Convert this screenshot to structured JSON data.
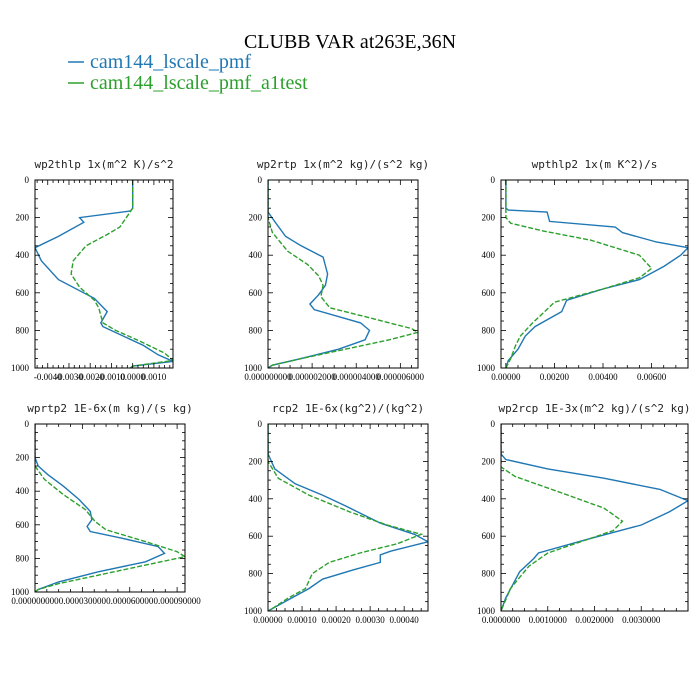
{
  "figure": {
    "title": "CLUBB VAR at263E,36N",
    "series_colors": [
      "#1f77b4",
      "#2ca02c"
    ],
    "legend": [
      {
        "label": "cam144_lscale_pmf",
        "color": "#1f77b4",
        "dash": ""
      },
      {
        "label": "cam144_lscale_pmf_a1test",
        "color": "#2ca02c",
        "dash": "5,2"
      }
    ]
  },
  "chart_data": [
    {
      "type": "line",
      "title": "wp2thlp  1x(m^2 K)/s^2",
      "xlim": [
        -0.0046,
        0.0019
      ],
      "ylim": [
        1000,
        0
      ],
      "xticks": [
        "-0.0040",
        "-0.0030",
        "-0.0020",
        "-0.0010",
        "0.0000",
        "0.0010"
      ],
      "xtick_values": [
        -0.004,
        -0.003,
        -0.002,
        -0.001,
        0.0,
        0.001
      ],
      "yticks": [
        "0",
        "200",
        "400",
        "600",
        "800",
        "1000"
      ],
      "ytick_values": [
        0,
        200,
        400,
        600,
        800,
        1000
      ],
      "series": [
        {
          "name": "cam144_lscale_pmf",
          "points": [
            [
              0,
              0
            ],
            [
              0,
              150
            ],
            [
              -0.0001,
              165
            ],
            [
              -0.0025,
              200
            ],
            [
              -0.0023,
              225
            ],
            [
              -0.0035,
              300
            ],
            [
              -0.0046,
              360
            ],
            [
              -0.0043,
              430
            ],
            [
              -0.0035,
              530
            ],
            [
              -0.0018,
              630
            ],
            [
              -0.0012,
              700
            ],
            [
              -0.0015,
              760
            ],
            [
              -0.0014,
              780
            ],
            [
              0.0005,
              880
            ],
            [
              0.0012,
              930
            ],
            [
              0.0019,
              965
            ],
            [
              0,
              990
            ],
            [
              -0.0001,
              1000
            ]
          ]
        },
        {
          "name": "cam144_lscale_pmf_a1test",
          "points": [
            [
              0,
              0
            ],
            [
              0,
              150
            ],
            [
              -0.0006,
              250
            ],
            [
              -0.0012,
              290
            ],
            [
              -0.0022,
              350
            ],
            [
              -0.0028,
              430
            ],
            [
              -0.0029,
              500
            ],
            [
              -0.0025,
              570
            ],
            [
              -0.0018,
              640
            ],
            [
              -0.0016,
              680
            ],
            [
              -0.0014,
              760
            ],
            [
              -0.0008,
              800
            ],
            [
              0.0002,
              850
            ],
            [
              0.0015,
              920
            ],
            [
              0.0019,
              960
            ],
            [
              0,
              990
            ],
            [
              -0.0001,
              1000
            ]
          ]
        }
      ]
    },
    {
      "type": "line",
      "title": "wp2rtp  1x(m^2 kg)/(s^2 kg)",
      "xlim": [
        0,
        6.8e-06
      ],
      "ylim": [
        1000,
        0
      ],
      "xticks": [
        "0.000000000",
        "0.000002000",
        "0.000004000",
        "0.000006000"
      ],
      "xtick_values": [
        0,
        2e-06,
        4e-06,
        6e-06
      ],
      "yticks": [
        "0",
        "200",
        "400",
        "600",
        "800",
        "1000"
      ],
      "ytick_values": [
        0,
        200,
        400,
        600,
        800,
        1000
      ],
      "series": [
        {
          "name": "cam144_lscale_pmf",
          "points": [
            [
              0,
              0
            ],
            [
              0,
              170
            ],
            [
              3e-07,
              220
            ],
            [
              8e-07,
              300
            ],
            [
              1.5e-06,
              350
            ],
            [
              2.5e-06,
              410
            ],
            [
              2.7e-06,
              500
            ],
            [
              2.6e-06,
              560
            ],
            [
              2.3e-06,
              610
            ],
            [
              1.9e-06,
              660
            ],
            [
              2.1e-06,
              690
            ],
            [
              4.2e-06,
              760
            ],
            [
              4.6e-06,
              800
            ],
            [
              4.4e-06,
              850
            ],
            [
              3.2e-06,
              900
            ],
            [
              1.5e-06,
              950
            ],
            [
              2e-07,
              985
            ],
            [
              0,
              1000
            ]
          ]
        },
        {
          "name": "cam144_lscale_pmf_a1test",
          "points": [
            [
              0,
              0
            ],
            [
              0,
              200
            ],
            [
              2e-07,
              280
            ],
            [
              9e-07,
              380
            ],
            [
              1.8e-06,
              450
            ],
            [
              2.3e-06,
              510
            ],
            [
              2.5e-06,
              560
            ],
            [
              2.4e-06,
              620
            ],
            [
              2.8e-06,
              680
            ],
            [
              4.5e-06,
              730
            ],
            [
              6.5e-06,
              790
            ],
            [
              6.8e-06,
              810
            ],
            [
              5.5e-06,
              850
            ],
            [
              3.5e-06,
              900
            ],
            [
              1.5e-06,
              950
            ],
            [
              2e-07,
              985
            ],
            [
              0,
              1000
            ]
          ]
        }
      ]
    },
    {
      "type": "line",
      "title": "wpthlp2  1x(m K^2)/s",
      "xlim": [
        -0.0002,
        0.0075
      ],
      "ylim": [
        1000,
        0
      ],
      "xticks": [
        "0.00000",
        "0.00200",
        "0.00400",
        "0.00600"
      ],
      "xtick_values": [
        0,
        0.002,
        0.004,
        0.006
      ],
      "yticks": [
        "0",
        "200",
        "400",
        "600",
        "800",
        "1000"
      ],
      "ytick_values": [
        0,
        200,
        400,
        600,
        800,
        1000
      ],
      "series": [
        {
          "name": "cam144_lscale_pmf",
          "points": [
            [
              0,
              0
            ],
            [
              0,
              150
            ],
            [
              0.0001,
              160
            ],
            [
              0.0017,
              170
            ],
            [
              0.0018,
              220
            ],
            [
              0.0045,
              250
            ],
            [
              0.0048,
              280
            ],
            [
              0.0062,
              330
            ],
            [
              0.0075,
              360
            ],
            [
              0.0072,
              400
            ],
            [
              0.0065,
              460
            ],
            [
              0.0055,
              530
            ],
            [
              0.004,
              580
            ],
            [
              0.0025,
              640
            ],
            [
              0.0023,
              700
            ],
            [
              0.0012,
              780
            ],
            [
              0.0008,
              830
            ],
            [
              0.0005,
              900
            ],
            [
              0.0001,
              960
            ],
            [
              0,
              1000
            ]
          ]
        },
        {
          "name": "cam144_lscale_pmf_a1test",
          "points": [
            [
              0,
              0
            ],
            [
              0,
              200
            ],
            [
              0.0002,
              230
            ],
            [
              0.0015,
              270
            ],
            [
              0.0035,
              320
            ],
            [
              0.0055,
              400
            ],
            [
              0.006,
              470
            ],
            [
              0.0055,
              520
            ],
            [
              0.004,
              580
            ],
            [
              0.002,
              650
            ],
            [
              0.0016,
              700
            ],
            [
              0.0011,
              760
            ],
            [
              0.0006,
              830
            ],
            [
              0.0004,
              880
            ],
            [
              0.0002,
              950
            ],
            [
              0,
              1000
            ]
          ]
        }
      ]
    },
    {
      "type": "line",
      "title": "wprtp2  1E-6x(m kg)/(s kg)",
      "xlim": [
        0,
        9.5e-05
      ],
      "ylim": [
        1000,
        0
      ],
      "xticks": [
        "0.000000000",
        "0.000030000",
        "0.000060000",
        "0.000090000"
      ],
      "xtick_values": [
        0,
        3e-05,
        6e-05,
        9e-05
      ],
      "yticks": [
        "0",
        "200",
        "400",
        "600",
        "800",
        "1000"
      ],
      "ytick_values": [
        0,
        200,
        400,
        600,
        800,
        1000
      ],
      "series": [
        {
          "name": "cam144_lscale_pmf",
          "points": [
            [
              0,
              0
            ],
            [
              0,
              200
            ],
            [
              2e-06,
              250
            ],
            [
              8e-06,
              300
            ],
            [
              1.8e-05,
              370
            ],
            [
              2.8e-05,
              450
            ],
            [
              3.5e-05,
              520
            ],
            [
              3.6e-05,
              570
            ],
            [
              3.3e-05,
              610
            ],
            [
              3.5e-05,
              640
            ],
            [
              5.5e-05,
              680
            ],
            [
              7.8e-05,
              730
            ],
            [
              8.2e-05,
              770
            ],
            [
              7e-05,
              820
            ],
            [
              4e-05,
              880
            ],
            [
              1.5e-05,
              940
            ],
            [
              2e-06,
              985
            ],
            [
              0,
              1000
            ]
          ]
        },
        {
          "name": "cam144_lscale_pmf_a1test",
          "points": [
            [
              0,
              0
            ],
            [
              0,
              250
            ],
            [
              6e-06,
              330
            ],
            [
              1.8e-05,
              420
            ],
            [
              3.2e-05,
              510
            ],
            [
              3.8e-05,
              580
            ],
            [
              4.5e-05,
              630
            ],
            [
              7e-05,
              700
            ],
            [
              9e-05,
              760
            ],
            [
              9.5e-05,
              790
            ],
            [
              7.5e-05,
              830
            ],
            [
              4.5e-05,
              890
            ],
            [
              1.5e-05,
              950
            ],
            [
              2e-06,
              985
            ],
            [
              0,
              1000
            ]
          ]
        }
      ]
    },
    {
      "type": "line",
      "title": "rcp2  1E-6x(kg^2)/(kg^2)",
      "xlim": [
        0,
        0.00047
      ],
      "ylim": [
        1000,
        0
      ],
      "xticks": [
        "0.00000",
        "0.00010",
        "0.00020",
        "0.00030",
        "0.00040"
      ],
      "xtick_values": [
        0,
        0.0001,
        0.0002,
        0.0003,
        0.0004
      ],
      "yticks": [
        "0",
        "200",
        "400",
        "600",
        "800",
        "1000"
      ],
      "ytick_values": [
        0,
        200,
        400,
        600,
        800,
        1000
      ],
      "series": [
        {
          "name": "cam144_lscale_pmf",
          "points": [
            [
              0,
              0
            ],
            [
              0,
              160
            ],
            [
              2e-05,
              240
            ],
            [
              8e-05,
              320
            ],
            [
              0.00016,
              380
            ],
            [
              0.00023,
              440
            ],
            [
              0.00033,
              530
            ],
            [
              0.00043,
              590
            ],
            [
              0.00047,
              630
            ],
            [
              0.00036,
              680
            ],
            [
              0.00033,
              700
            ],
            [
              0.00033,
              740
            ],
            [
              0.00025,
              780
            ],
            [
              0.00016,
              830
            ],
            [
              0.00012,
              880
            ],
            [
              6e-05,
              940
            ],
            [
              1e-05,
              990
            ],
            [
              0,
              1000
            ]
          ]
        },
        {
          "name": "cam144_lscale_pmf_a1test",
          "points": [
            [
              0,
              0
            ],
            [
              0,
              200
            ],
            [
              3e-05,
              290
            ],
            [
              0.00012,
              380
            ],
            [
              0.00024,
              470
            ],
            [
              0.00035,
              540
            ],
            [
              0.00045,
              590
            ],
            [
              0.00038,
              640
            ],
            [
              0.00027,
              690
            ],
            [
              0.00018,
              740
            ],
            [
              0.00013,
              800
            ],
            [
              0.00012,
              840
            ],
            [
              0.00011,
              880
            ],
            [
              6e-05,
              930
            ],
            [
              1e-05,
              990
            ],
            [
              0,
              1000
            ]
          ]
        }
      ]
    },
    {
      "type": "line",
      "title": "wp2rcp  1E-3x(m^2 kg)/(s^2 kg)",
      "xlim": [
        0,
        0.004
      ],
      "ylim": [
        1000,
        0
      ],
      "xticks": [
        "0.0000000",
        "0.0010000",
        "0.0020000",
        "0.0030000"
      ],
      "xtick_values": [
        0,
        0.001,
        0.002,
        0.003
      ],
      "yticks": [
        "0",
        "200",
        "400",
        "600",
        "800",
        "1000"
      ],
      "ytick_values": [
        0,
        200,
        400,
        600,
        800,
        1000
      ],
      "series": [
        {
          "name": "cam144_lscale_pmf",
          "points": [
            [
              0,
              0
            ],
            [
              0,
              160
            ],
            [
              0.0001,
              190
            ],
            [
              0.001,
              240
            ],
            [
              0.0022,
              290
            ],
            [
              0.0034,
              350
            ],
            [
              0.004,
              410
            ],
            [
              0.0036,
              470
            ],
            [
              0.003,
              540
            ],
            [
              0.0018,
              620
            ],
            [
              0.0008,
              690
            ],
            [
              0.0007,
              720
            ],
            [
              0.0004,
              790
            ],
            [
              0.00025,
              860
            ],
            [
              0.0001,
              930
            ],
            [
              0,
              1000
            ]
          ]
        },
        {
          "name": "cam144_lscale_pmf_a1test",
          "points": [
            [
              0,
              0
            ],
            [
              0,
              230
            ],
            [
              0.0003,
              280
            ],
            [
              0.0012,
              360
            ],
            [
              0.0022,
              450
            ],
            [
              0.0026,
              520
            ],
            [
              0.0024,
              570
            ],
            [
              0.0017,
              630
            ],
            [
              0.001,
              690
            ],
            [
              0.0006,
              760
            ],
            [
              0.0004,
              820
            ],
            [
              0.0002,
              880
            ],
            [
              0.0001,
              940
            ],
            [
              0,
              1000
            ]
          ]
        }
      ]
    }
  ]
}
